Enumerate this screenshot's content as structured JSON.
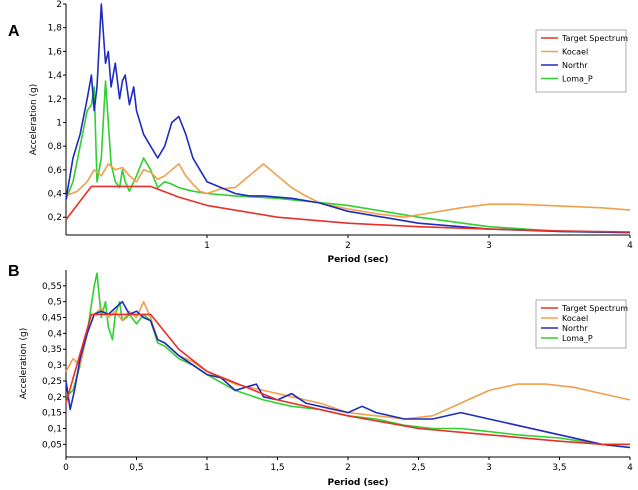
{
  "chart_data": [
    {
      "panel": "A",
      "type": "line",
      "xlabel": "Period (sec)",
      "ylabel": "Acceleration (g)",
      "xlim": [
        0,
        4
      ],
      "ylim": [
        0.05,
        2
      ],
      "xticks": [
        {
          "v": 1,
          "label": "1"
        },
        {
          "v": 2,
          "label": "2"
        },
        {
          "v": 3,
          "label": "3"
        },
        {
          "v": 4,
          "label": "4"
        }
      ],
      "yticks": [
        {
          "v": 0.2,
          "label": "0,2"
        },
        {
          "v": 0.4,
          "label": "0,4"
        },
        {
          "v": 0.6,
          "label": "0,6"
        },
        {
          "v": 0.8,
          "label": "0,8"
        },
        {
          "v": 1,
          "label": "1"
        },
        {
          "v": 1.2,
          "label": "1,2"
        },
        {
          "v": 1.4,
          "label": "1,4"
        },
        {
          "v": 1.6,
          "label": "1,6"
        },
        {
          "v": 1.8,
          "label": "1,8"
        },
        {
          "v": 2,
          "label": "2"
        }
      ],
      "grid": false,
      "legend": "top-right",
      "series": [
        {
          "name": "Target Spectrum",
          "color": "#e8302a",
          "x": [
            0,
            0.18,
            0.6,
            0.8,
            1.0,
            1.5,
            2.0,
            2.5,
            3.0,
            3.5,
            4.0
          ],
          "y": [
            0.18,
            0.46,
            0.46,
            0.37,
            0.3,
            0.2,
            0.15,
            0.12,
            0.1,
            0.085,
            0.075
          ]
        },
        {
          "name": "Kocael",
          "color": "#f0a04b",
          "x": [
            0,
            0.08,
            0.15,
            0.2,
            0.25,
            0.3,
            0.35,
            0.4,
            0.45,
            0.5,
            0.55,
            0.6,
            0.65,
            0.7,
            0.75,
            0.8,
            0.85,
            0.9,
            0.95,
            1.0,
            1.1,
            1.2,
            1.3,
            1.4,
            1.5,
            1.6,
            1.7,
            1.8,
            2.0,
            2.2,
            2.4,
            2.6,
            2.8,
            3.0,
            3.2,
            3.4,
            3.6,
            3.8,
            4.0
          ],
          "y": [
            0.38,
            0.42,
            0.5,
            0.6,
            0.55,
            0.65,
            0.6,
            0.62,
            0.55,
            0.5,
            0.6,
            0.58,
            0.52,
            0.55,
            0.6,
            0.65,
            0.55,
            0.48,
            0.42,
            0.4,
            0.44,
            0.45,
            0.55,
            0.65,
            0.55,
            0.45,
            0.38,
            0.32,
            0.27,
            0.23,
            0.2,
            0.24,
            0.28,
            0.31,
            0.31,
            0.3,
            0.29,
            0.28,
            0.26
          ]
        },
        {
          "name": "Northr",
          "color": "#1f2bbf",
          "x": [
            0,
            0.05,
            0.1,
            0.15,
            0.18,
            0.2,
            0.22,
            0.25,
            0.28,
            0.3,
            0.32,
            0.35,
            0.38,
            0.4,
            0.42,
            0.45,
            0.48,
            0.5,
            0.55,
            0.6,
            0.65,
            0.7,
            0.75,
            0.8,
            0.85,
            0.9,
            0.95,
            1.0,
            1.1,
            1.2,
            1.3,
            1.4,
            1.6,
            1.8,
            2.0,
            2.5,
            3.0,
            3.5,
            4.0
          ],
          "y": [
            0.35,
            0.7,
            0.9,
            1.2,
            1.4,
            1.1,
            1.3,
            2.0,
            1.5,
            1.6,
            1.3,
            1.5,
            1.2,
            1.35,
            1.4,
            1.15,
            1.3,
            1.1,
            0.9,
            0.8,
            0.7,
            0.8,
            1.0,
            1.05,
            0.9,
            0.7,
            0.6,
            0.5,
            0.45,
            0.4,
            0.38,
            0.38,
            0.36,
            0.32,
            0.25,
            0.15,
            0.1,
            0.08,
            0.07
          ]
        },
        {
          "name": "Loma_P",
          "color": "#30d030",
          "x": [
            0,
            0.05,
            0.1,
            0.15,
            0.18,
            0.2,
            0.22,
            0.25,
            0.28,
            0.3,
            0.32,
            0.35,
            0.38,
            0.4,
            0.42,
            0.45,
            0.5,
            0.55,
            0.6,
            0.65,
            0.7,
            0.75,
            0.8,
            0.9,
            1.0,
            1.2,
            1.5,
            2.0,
            2.5,
            3.0,
            3.5,
            4.0
          ],
          "y": [
            0.35,
            0.5,
            0.8,
            1.1,
            1.15,
            1.3,
            0.5,
            0.7,
            1.35,
            1.0,
            0.65,
            0.5,
            0.45,
            0.6,
            0.5,
            0.42,
            0.55,
            0.7,
            0.6,
            0.45,
            0.5,
            0.48,
            0.45,
            0.42,
            0.4,
            0.38,
            0.36,
            0.3,
            0.2,
            0.12,
            0.08,
            0.07
          ]
        }
      ]
    },
    {
      "panel": "B",
      "type": "line",
      "xlabel": "Period (sec)",
      "ylabel": "Acceleration (g)",
      "xlim": [
        0,
        4
      ],
      "ylim": [
        0.01,
        0.6
      ],
      "xticks": [
        {
          "v": 0,
          "label": "0"
        },
        {
          "v": 0.5,
          "label": "0,5"
        },
        {
          "v": 1,
          "label": "1"
        },
        {
          "v": 1.5,
          "label": "1,5"
        },
        {
          "v": 2,
          "label": "2"
        },
        {
          "v": 2.5,
          "label": "2,5"
        },
        {
          "v": 3,
          "label": "3"
        },
        {
          "v": 3.5,
          "label": "3,5"
        },
        {
          "v": 4,
          "label": "4"
        }
      ],
      "yticks": [
        {
          "v": 0.05,
          "label": "0,05"
        },
        {
          "v": 0.1,
          "label": "0,1"
        },
        {
          "v": 0.15,
          "label": "0,15"
        },
        {
          "v": 0.2,
          "label": "0,2"
        },
        {
          "v": 0.25,
          "label": "0,25"
        },
        {
          "v": 0.3,
          "label": "0,3"
        },
        {
          "v": 0.35,
          "label": "0,35"
        },
        {
          "v": 0.4,
          "label": "0,4"
        },
        {
          "v": 0.45,
          "label": "0,45"
        },
        {
          "v": 0.5,
          "label": "0,5"
        },
        {
          "v": 0.55,
          "label": "0,55"
        }
      ],
      "grid": false,
      "legend": "top-right",
      "series": [
        {
          "name": "Target Spectrum",
          "color": "#e8302a",
          "x": [
            0,
            0.18,
            0.6,
            0.8,
            1.0,
            1.5,
            2.0,
            2.5,
            3.0,
            3.5,
            3.8,
            4.0
          ],
          "y": [
            0.18,
            0.46,
            0.46,
            0.35,
            0.28,
            0.19,
            0.14,
            0.1,
            0.08,
            0.06,
            0.05,
            0.05
          ]
        },
        {
          "name": "Kocael",
          "color": "#f0a04b",
          "x": [
            0,
            0.05,
            0.1,
            0.15,
            0.2,
            0.25,
            0.3,
            0.35,
            0.4,
            0.45,
            0.5,
            0.55,
            0.6,
            0.65,
            0.7,
            0.8,
            0.9,
            1.0,
            1.2,
            1.4,
            1.6,
            1.8,
            2.0,
            2.2,
            2.4,
            2.6,
            2.8,
            3.0,
            3.2,
            3.4,
            3.6,
            3.8,
            4.0
          ],
          "y": [
            0.28,
            0.32,
            0.3,
            0.4,
            0.46,
            0.48,
            0.45,
            0.47,
            0.44,
            0.47,
            0.45,
            0.5,
            0.45,
            0.38,
            0.37,
            0.33,
            0.31,
            0.28,
            0.24,
            0.22,
            0.2,
            0.18,
            0.15,
            0.14,
            0.13,
            0.14,
            0.18,
            0.22,
            0.24,
            0.24,
            0.23,
            0.21,
            0.19
          ]
        },
        {
          "name": "Northr",
          "color": "#1f2bbf",
          "x": [
            0,
            0.03,
            0.06,
            0.1,
            0.15,
            0.2,
            0.25,
            0.3,
            0.35,
            0.4,
            0.45,
            0.5,
            0.55,
            0.6,
            0.65,
            0.7,
            0.8,
            0.9,
            1.0,
            1.1,
            1.2,
            1.35,
            1.4,
            1.5,
            1.6,
            1.7,
            1.8,
            2.0,
            2.1,
            2.2,
            2.4,
            2.6,
            2.8,
            3.0,
            3.2,
            3.5,
            3.8,
            4.0
          ],
          "y": [
            0.25,
            0.16,
            0.22,
            0.32,
            0.4,
            0.46,
            0.47,
            0.46,
            0.48,
            0.5,
            0.46,
            0.47,
            0.45,
            0.44,
            0.38,
            0.37,
            0.33,
            0.3,
            0.27,
            0.26,
            0.22,
            0.24,
            0.2,
            0.19,
            0.21,
            0.18,
            0.17,
            0.15,
            0.17,
            0.15,
            0.13,
            0.13,
            0.15,
            0.13,
            0.11,
            0.08,
            0.05,
            0.04
          ]
        },
        {
          "name": "Loma_P",
          "color": "#30d030",
          "x": [
            0,
            0.05,
            0.1,
            0.15,
            0.2,
            0.22,
            0.25,
            0.28,
            0.3,
            0.33,
            0.35,
            0.38,
            0.4,
            0.43,
            0.45,
            0.5,
            0.55,
            0.6,
            0.65,
            0.7,
            0.8,
            0.9,
            1.0,
            1.2,
            1.4,
            1.6,
            1.8,
            2.0,
            2.2,
            2.4,
            2.6,
            2.8,
            3.0,
            3.2,
            3.5,
            3.8,
            4.0
          ],
          "y": [
            0.2,
            0.22,
            0.3,
            0.4,
            0.55,
            0.59,
            0.45,
            0.5,
            0.42,
            0.38,
            0.46,
            0.5,
            0.44,
            0.45,
            0.46,
            0.43,
            0.46,
            0.44,
            0.37,
            0.36,
            0.32,
            0.3,
            0.27,
            0.22,
            0.19,
            0.17,
            0.16,
            0.14,
            0.13,
            0.11,
            0.1,
            0.1,
            0.09,
            0.08,
            0.07,
            0.05,
            0.04
          ]
        }
      ]
    }
  ]
}
